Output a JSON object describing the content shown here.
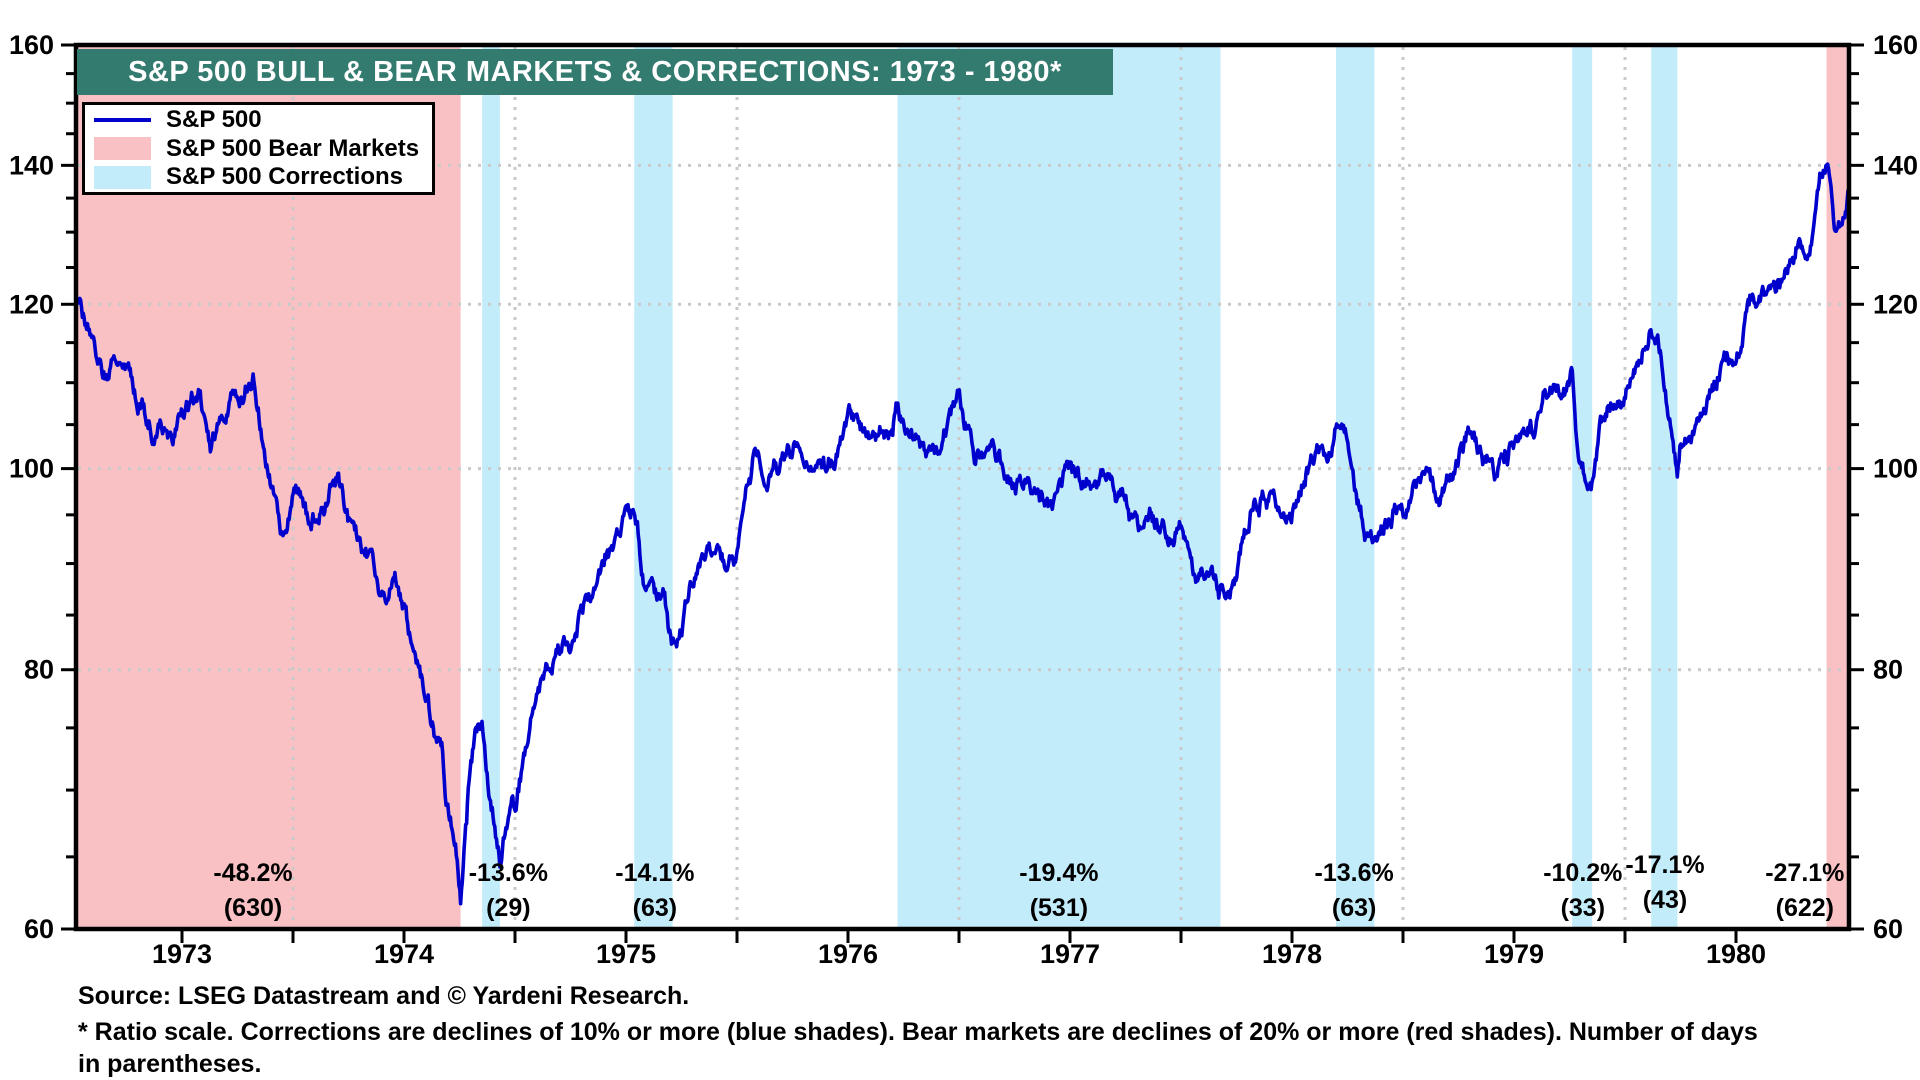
{
  "title_banner": "S&P 500 BULL & BEAR MARKETS & CORRECTIONS: 1973 - 1980*",
  "legend": {
    "items": [
      {
        "key": "line",
        "label": "S&P 500"
      },
      {
        "key": "bear",
        "label": "S&P 500 Bear Markets"
      },
      {
        "key": "correction",
        "label": "S&P 500 Corrections"
      }
    ]
  },
  "footer": {
    "source": "Source: LSEG Datastream and © Yardeni Research.",
    "footnote_line1": "* Ratio scale. Corrections are declines of 10% or more (blue shades). Bear markets are declines of 20% or more (red shades). Number of days",
    "footnote_line2": "in parentheses."
  },
  "colors": {
    "line": "#0000CD",
    "bear_shade": "#FAC1C5",
    "correction_shade": "#C3ECFA",
    "banner_bg": "#337A6F",
    "banner_text": "#FFFFFF",
    "gridline": "#C9C9C9",
    "axis": "#000000"
  },
  "chart_data": {
    "type": "line",
    "title": "S&P 500 BULL & BEAR MARKETS & CORRECTIONS: 1973 - 1980*",
    "series_name": "S&P 500",
    "y_axis": {
      "scale": "ratio (log)",
      "range": [
        60,
        160
      ],
      "major_ticks": [
        60,
        80,
        100,
        120,
        140,
        160
      ],
      "minor_step": 5,
      "label_sides": "both",
      "dotted_gridlines_at": [
        80,
        100,
        120,
        140
      ]
    },
    "x_axis": {
      "range_years": [
        1973.0,
        1981.01
      ],
      "year_labels": [
        "1973",
        "1974",
        "1975",
        "1976",
        "1977",
        "1978",
        "1979",
        "1980"
      ],
      "tick_step_years": 0.5,
      "dotted_gridlines_at": [
        1974,
        1975,
        1976,
        1977,
        1978,
        1979,
        1980
      ]
    },
    "bear_markets": [
      {
        "start": 1973.03,
        "end": 1974.755,
        "decline": "-48.2%",
        "days": "(630)",
        "label_year": 1973.82
      },
      {
        "start": 1980.908,
        "end": 1981.01,
        "decline": "-27.1%",
        "days": "(622)",
        "label_year": 1980.81
      }
    ],
    "corrections": [
      {
        "start": 1974.852,
        "end": 1974.932,
        "decline": "-13.6%",
        "days": "(29)",
        "label_year": 1974.97
      },
      {
        "start": 1975.537,
        "end": 1975.71,
        "decline": "-14.1%",
        "days": "(63)",
        "label_year": 1975.63
      },
      {
        "start": 1976.723,
        "end": 1978.178,
        "decline": "-19.4%",
        "days": "(531)",
        "label_year": 1977.45
      },
      {
        "start": 1978.698,
        "end": 1978.871,
        "decline": "-13.6%",
        "days": "(63)",
        "label_year": 1978.78
      },
      {
        "start": 1979.762,
        "end": 1979.852,
        "decline": "-10.2%",
        "days": "(33)",
        "label_year": 1979.81
      },
      {
        "start": 1980.118,
        "end": 1980.236,
        "decline": "-17.1%",
        "days": "(43)",
        "label_year": 1980.18,
        "label_dy": -8
      }
    ],
    "series": [
      {
        "name": "S&P 500",
        "anchors_year_value": [
          [
            1973.005,
            119.3
          ],
          [
            1973.03,
            120.24
          ],
          [
            1973.09,
            116.0
          ],
          [
            1973.13,
            113.5
          ],
          [
            1973.16,
            111.7
          ],
          [
            1973.21,
            113.4
          ],
          [
            1973.25,
            111.5
          ],
          [
            1973.29,
            109.0
          ],
          [
            1973.33,
            107.0
          ],
          [
            1973.38,
            105.3
          ],
          [
            1973.42,
            105.0
          ],
          [
            1973.46,
            102.0
          ],
          [
            1973.5,
            104.3
          ],
          [
            1973.54,
            106.5
          ],
          [
            1973.58,
            108.2
          ],
          [
            1973.63,
            100.5
          ],
          [
            1973.67,
            104.3
          ],
          [
            1973.71,
            107.2
          ],
          [
            1973.75,
            108.4
          ],
          [
            1973.8,
            110.5
          ],
          [
            1973.82,
            111.4
          ],
          [
            1973.85,
            106.0
          ],
          [
            1973.89,
            99.0
          ],
          [
            1973.92,
            96.0
          ],
          [
            1973.95,
            92.6
          ],
          [
            1974.0,
            97.6
          ],
          [
            1974.04,
            96.6
          ],
          [
            1974.08,
            92.8
          ],
          [
            1974.12,
            96.2
          ],
          [
            1974.2,
            99.7
          ],
          [
            1974.25,
            94.0
          ],
          [
            1974.29,
            92.0
          ],
          [
            1974.33,
            90.3
          ],
          [
            1974.38,
            88.0
          ],
          [
            1974.42,
            87.3
          ],
          [
            1974.46,
            89.0
          ],
          [
            1974.5,
            86.0
          ],
          [
            1974.54,
            83.0
          ],
          [
            1974.58,
            79.3
          ],
          [
            1974.62,
            76.0
          ],
          [
            1974.67,
            72.2
          ],
          [
            1974.7,
            68.0
          ],
          [
            1974.73,
            66.5
          ],
          [
            1974.755,
            62.3
          ],
          [
            1974.78,
            67.0
          ],
          [
            1974.8,
            71.5
          ],
          [
            1974.82,
            73.9
          ],
          [
            1974.852,
            75.2
          ],
          [
            1974.88,
            70.0
          ],
          [
            1974.91,
            67.5
          ],
          [
            1974.932,
            65.0
          ],
          [
            1974.96,
            67.5
          ],
          [
            1975.0,
            68.6
          ],
          [
            1975.04,
            72.0
          ],
          [
            1975.08,
            77.0
          ],
          [
            1975.12,
            80.5
          ],
          [
            1975.16,
            81.6
          ],
          [
            1975.21,
            82.5
          ],
          [
            1975.25,
            83.4
          ],
          [
            1975.29,
            85.5
          ],
          [
            1975.33,
            87.3
          ],
          [
            1975.38,
            89.5
          ],
          [
            1975.42,
            91.2
          ],
          [
            1975.46,
            93.0
          ],
          [
            1975.5,
            95.2
          ],
          [
            1975.537,
            95.6
          ],
          [
            1975.56,
            92.0
          ],
          [
            1975.58,
            88.8
          ],
          [
            1975.62,
            87.5
          ],
          [
            1975.67,
            86.9
          ],
          [
            1975.69,
            84.0
          ],
          [
            1975.71,
            82.1
          ],
          [
            1975.75,
            83.9
          ],
          [
            1975.79,
            87.0
          ],
          [
            1975.83,
            89.0
          ],
          [
            1975.88,
            90.5
          ],
          [
            1975.92,
            91.2
          ],
          [
            1975.96,
            89.0
          ],
          [
            1976.0,
            90.2
          ],
          [
            1976.04,
            96.5
          ],
          [
            1976.08,
            100.9
          ],
          [
            1976.12,
            99.5
          ],
          [
            1976.16,
            99.7
          ],
          [
            1976.21,
            101.0
          ],
          [
            1976.25,
            102.8
          ],
          [
            1976.29,
            102.0
          ],
          [
            1976.33,
            101.6
          ],
          [
            1976.38,
            100.5
          ],
          [
            1976.42,
            100.2
          ],
          [
            1976.46,
            102.5
          ],
          [
            1976.5,
            104.3
          ],
          [
            1976.54,
            104.5
          ],
          [
            1976.58,
            103.4
          ],
          [
            1976.62,
            103.8
          ],
          [
            1976.67,
            102.9
          ],
          [
            1976.7,
            105.5
          ],
          [
            1976.723,
            107.8
          ],
          [
            1976.75,
            105.2
          ],
          [
            1976.79,
            103.5
          ],
          [
            1976.83,
            102.9
          ],
          [
            1976.88,
            101.0
          ],
          [
            1976.92,
            102.1
          ],
          [
            1976.96,
            104.5
          ],
          [
            1977.0,
            107.5
          ],
          [
            1977.04,
            103.5
          ],
          [
            1977.08,
            102.0
          ],
          [
            1977.12,
            100.5
          ],
          [
            1977.16,
            99.8
          ],
          [
            1977.21,
            99.5
          ],
          [
            1977.25,
            98.4
          ],
          [
            1977.29,
            99.5
          ],
          [
            1977.33,
            98.4
          ],
          [
            1977.38,
            96.5
          ],
          [
            1977.42,
            96.1
          ],
          [
            1977.46,
            98.5
          ],
          [
            1977.5,
            100.5
          ],
          [
            1977.54,
            99.5
          ],
          [
            1977.58,
            98.9
          ],
          [
            1977.62,
            97.5
          ],
          [
            1977.67,
            96.8
          ],
          [
            1977.71,
            97.0
          ],
          [
            1977.75,
            96.5
          ],
          [
            1977.79,
            94.0
          ],
          [
            1977.83,
            92.3
          ],
          [
            1977.88,
            93.5
          ],
          [
            1977.92,
            94.3
          ],
          [
            1977.96,
            93.0
          ],
          [
            1978.0,
            95.1
          ],
          [
            1978.04,
            91.5
          ],
          [
            1978.08,
            89.3
          ],
          [
            1978.12,
            88.0
          ],
          [
            1978.16,
            87.0
          ],
          [
            1978.178,
            86.9
          ],
          [
            1978.21,
            88.0
          ],
          [
            1978.25,
            89.2
          ],
          [
            1978.29,
            93.0
          ],
          [
            1978.33,
            96.8
          ],
          [
            1978.38,
            97.5
          ],
          [
            1978.42,
            97.2
          ],
          [
            1978.46,
            96.0
          ],
          [
            1978.5,
            95.5
          ],
          [
            1978.54,
            98.0
          ],
          [
            1978.58,
            100.7
          ],
          [
            1978.62,
            102.5
          ],
          [
            1978.67,
            103.3
          ],
          [
            1978.698,
            107.0
          ],
          [
            1978.72,
            104.0
          ],
          [
            1978.75,
            102.5
          ],
          [
            1978.79,
            97.5
          ],
          [
            1978.83,
            93.2
          ],
          [
            1978.871,
            92.5
          ],
          [
            1978.92,
            94.7
          ],
          [
            1978.96,
            96.5
          ],
          [
            1979.0,
            96.1
          ],
          [
            1979.04,
            98.5
          ],
          [
            1979.08,
            99.9
          ],
          [
            1979.12,
            98.0
          ],
          [
            1979.16,
            96.3
          ],
          [
            1979.21,
            99.0
          ],
          [
            1979.25,
            101.6
          ],
          [
            1979.29,
            102.5
          ],
          [
            1979.33,
            101.8
          ],
          [
            1979.38,
            100.0
          ],
          [
            1979.42,
            99.1
          ],
          [
            1979.46,
            101.5
          ],
          [
            1979.5,
            102.9
          ],
          [
            1979.54,
            103.0
          ],
          [
            1979.58,
            103.8
          ],
          [
            1979.62,
            106.5
          ],
          [
            1979.67,
            109.3
          ],
          [
            1979.71,
            108.5
          ],
          [
            1979.75,
            109.3
          ],
          [
            1979.762,
            111.3
          ],
          [
            1979.79,
            103.5
          ],
          [
            1979.81,
            101.8
          ],
          [
            1979.852,
            99.9
          ],
          [
            1979.88,
            103.5
          ],
          [
            1979.92,
            106.2
          ],
          [
            1979.96,
            107.5
          ],
          [
            1980.0,
            107.9
          ],
          [
            1980.04,
            110.5
          ],
          [
            1980.08,
            114.2
          ],
          [
            1980.118,
            118.4
          ],
          [
            1980.16,
            113.7
          ],
          [
            1980.2,
            105.0
          ],
          [
            1980.236,
            98.2
          ],
          [
            1980.25,
            102.1
          ],
          [
            1980.29,
            104.5
          ],
          [
            1980.33,
            106.3
          ],
          [
            1980.38,
            108.5
          ],
          [
            1980.42,
            111.2
          ],
          [
            1980.46,
            113.5
          ],
          [
            1980.5,
            114.2
          ],
          [
            1980.54,
            118.5
          ],
          [
            1980.58,
            121.7
          ],
          [
            1980.62,
            123.5
          ],
          [
            1980.67,
            122.4
          ],
          [
            1980.71,
            124.0
          ],
          [
            1980.75,
            125.5
          ],
          [
            1980.79,
            128.0
          ],
          [
            1980.83,
            127.5
          ],
          [
            1980.86,
            133.0
          ],
          [
            1980.88,
            137.5
          ],
          [
            1980.908,
            140.5
          ],
          [
            1980.93,
            134.0
          ],
          [
            1980.945,
            127.5
          ],
          [
            1980.96,
            130.0
          ],
          [
            1980.98,
            133.0
          ],
          [
            1981.005,
            135.8
          ]
        ]
      }
    ]
  }
}
